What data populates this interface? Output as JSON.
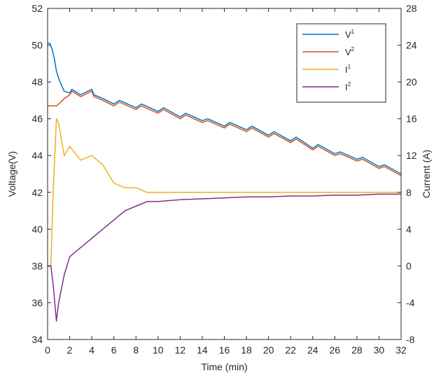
{
  "chart_data": {
    "type": "line",
    "title": "",
    "xlabel": "Time (min)",
    "ylabel": "Voltage(V)",
    "ylabel_right": "Current (A)",
    "xlim": [
      0,
      32
    ],
    "ylim": [
      34,
      52
    ],
    "ylim_right": [
      -8,
      28
    ],
    "x_ticks": [
      "0",
      "2",
      "4",
      "6",
      "8",
      "10",
      "12",
      "14",
      "16",
      "18",
      "20",
      "22",
      "24",
      "26",
      "28",
      "30",
      "32"
    ],
    "y_ticks": [
      "34",
      "36",
      "38",
      "40",
      "42",
      "44",
      "46",
      "48",
      "50",
      "52"
    ],
    "y_ticks_right": [
      "-8",
      "-4",
      "0",
      "4",
      "8",
      "12",
      "16",
      "20",
      "24",
      "28"
    ],
    "grid": false,
    "legend_position": "top-right",
    "series": [
      {
        "name": "V",
        "superscript": "1",
        "axis": "left",
        "color": "#0072BD",
        "x": [
          0.0,
          0.2,
          0.4,
          0.6,
          0.8,
          1.0,
          1.2,
          1.5,
          2.0,
          2.2,
          3.0,
          4.0,
          4.2,
          5.0,
          6.0,
          6.5,
          8.0,
          8.5,
          10.0,
          10.5,
          12.0,
          12.5,
          14.0,
          14.5,
          16.0,
          16.5,
          18.0,
          18.5,
          20.0,
          20.5,
          22.0,
          22.5,
          24.0,
          24.5,
          26.0,
          26.5,
          28.0,
          28.5,
          30.0,
          30.5,
          32.0
        ],
        "values": [
          50.1,
          50.1,
          49.8,
          49.3,
          48.6,
          48.2,
          47.9,
          47.5,
          47.4,
          47.6,
          47.3,
          47.6,
          47.3,
          47.1,
          46.8,
          47.0,
          46.6,
          46.8,
          46.4,
          46.6,
          46.1,
          46.3,
          45.9,
          46.0,
          45.6,
          45.8,
          45.4,
          45.6,
          45.1,
          45.3,
          44.8,
          45.0,
          44.4,
          44.6,
          44.1,
          44.2,
          43.8,
          43.9,
          43.4,
          43.5,
          43.0
        ]
      },
      {
        "name": "V",
        "superscript": "2",
        "axis": "left",
        "color": "#D95319",
        "x": [
          0.0,
          0.8,
          1.0,
          1.5,
          2.0,
          2.2,
          3.0,
          4.0,
          4.2,
          5.0,
          6.0,
          6.5,
          8.0,
          8.5,
          10.0,
          10.5,
          12.0,
          12.5,
          14.0,
          14.5,
          16.0,
          16.5,
          18.0,
          18.5,
          20.0,
          20.5,
          22.0,
          22.5,
          24.0,
          24.5,
          26.0,
          26.5,
          28.0,
          28.5,
          30.0,
          30.5,
          32.0
        ],
        "values": [
          46.7,
          46.7,
          46.8,
          47.1,
          47.3,
          47.5,
          47.2,
          47.5,
          47.2,
          47.0,
          46.7,
          46.9,
          46.5,
          46.7,
          46.3,
          46.5,
          46.0,
          46.2,
          45.8,
          45.9,
          45.5,
          45.7,
          45.3,
          45.5,
          45.0,
          45.2,
          44.7,
          44.9,
          44.3,
          44.5,
          44.0,
          44.1,
          43.7,
          43.8,
          43.3,
          43.4,
          42.9
        ]
      },
      {
        "name": "I",
        "superscript": "1",
        "axis": "right",
        "color": "#EDB120",
        "x": [
          0.0,
          0.3,
          0.5,
          0.8,
          1.0,
          1.5,
          2.0,
          3.0,
          4.0,
          5.0,
          6.0,
          7.0,
          8.0,
          9.0,
          10.0,
          12.0,
          14.0,
          16.0,
          18.0,
          20.0,
          22.0,
          24.0,
          26.0,
          28.0,
          30.0,
          32.0
        ],
        "values": [
          0.0,
          0.0,
          8.0,
          16.0,
          15.5,
          12.0,
          13.0,
          11.5,
          12.0,
          11.0,
          9.0,
          8.5,
          8.5,
          8.0,
          8.0,
          8.0,
          8.0,
          8.0,
          8.0,
          8.0,
          8.0,
          8.0,
          8.0,
          8.0,
          8.0,
          8.0
        ]
      },
      {
        "name": "I",
        "superscript": "2",
        "axis": "right",
        "color": "#7E2F8E",
        "x": [
          0.0,
          0.3,
          0.5,
          0.8,
          1.0,
          1.5,
          2.0,
          3.0,
          4.0,
          5.0,
          6.0,
          7.0,
          8.0,
          9.0,
          10.0,
          12.0,
          14.0,
          16.0,
          18.0,
          20.0,
          22.0,
          24.0,
          26.0,
          28.0,
          30.0,
          32.0
        ],
        "values": [
          0.0,
          0.0,
          -2.0,
          -6.0,
          -4.0,
          -1.0,
          1.0,
          2.0,
          3.0,
          4.0,
          5.0,
          6.0,
          6.5,
          7.0,
          7.0,
          7.2,
          7.3,
          7.4,
          7.5,
          7.5,
          7.6,
          7.6,
          7.7,
          7.7,
          7.8,
          7.8
        ]
      }
    ]
  }
}
